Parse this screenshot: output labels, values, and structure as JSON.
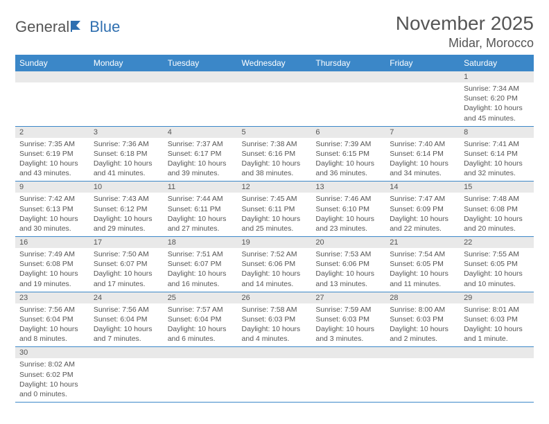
{
  "logo": {
    "general": "General",
    "blue": "Blue"
  },
  "title": "November 2025",
  "location": "Midar, Morocco",
  "colors": {
    "header_bg": "#3b87c8",
    "header_text": "#ffffff",
    "daynum_bg": "#e9e9e9",
    "text": "#555555",
    "rule": "#3b87c8",
    "logo_accent": "#2f6fb0"
  },
  "weekdays": [
    "Sunday",
    "Monday",
    "Tuesday",
    "Wednesday",
    "Thursday",
    "Friday",
    "Saturday"
  ],
  "grid": [
    [
      null,
      null,
      null,
      null,
      null,
      null,
      {
        "n": "1",
        "sunrise": "Sunrise: 7:34 AM",
        "sunset": "Sunset: 6:20 PM",
        "daylight": "Daylight: 10 hours and 45 minutes."
      }
    ],
    [
      {
        "n": "2",
        "sunrise": "Sunrise: 7:35 AM",
        "sunset": "Sunset: 6:19 PM",
        "daylight": "Daylight: 10 hours and 43 minutes."
      },
      {
        "n": "3",
        "sunrise": "Sunrise: 7:36 AM",
        "sunset": "Sunset: 6:18 PM",
        "daylight": "Daylight: 10 hours and 41 minutes."
      },
      {
        "n": "4",
        "sunrise": "Sunrise: 7:37 AM",
        "sunset": "Sunset: 6:17 PM",
        "daylight": "Daylight: 10 hours and 39 minutes."
      },
      {
        "n": "5",
        "sunrise": "Sunrise: 7:38 AM",
        "sunset": "Sunset: 6:16 PM",
        "daylight": "Daylight: 10 hours and 38 minutes."
      },
      {
        "n": "6",
        "sunrise": "Sunrise: 7:39 AM",
        "sunset": "Sunset: 6:15 PM",
        "daylight": "Daylight: 10 hours and 36 minutes."
      },
      {
        "n": "7",
        "sunrise": "Sunrise: 7:40 AM",
        "sunset": "Sunset: 6:14 PM",
        "daylight": "Daylight: 10 hours and 34 minutes."
      },
      {
        "n": "8",
        "sunrise": "Sunrise: 7:41 AM",
        "sunset": "Sunset: 6:14 PM",
        "daylight": "Daylight: 10 hours and 32 minutes."
      }
    ],
    [
      {
        "n": "9",
        "sunrise": "Sunrise: 7:42 AM",
        "sunset": "Sunset: 6:13 PM",
        "daylight": "Daylight: 10 hours and 30 minutes."
      },
      {
        "n": "10",
        "sunrise": "Sunrise: 7:43 AM",
        "sunset": "Sunset: 6:12 PM",
        "daylight": "Daylight: 10 hours and 29 minutes."
      },
      {
        "n": "11",
        "sunrise": "Sunrise: 7:44 AM",
        "sunset": "Sunset: 6:11 PM",
        "daylight": "Daylight: 10 hours and 27 minutes."
      },
      {
        "n": "12",
        "sunrise": "Sunrise: 7:45 AM",
        "sunset": "Sunset: 6:11 PM",
        "daylight": "Daylight: 10 hours and 25 minutes."
      },
      {
        "n": "13",
        "sunrise": "Sunrise: 7:46 AM",
        "sunset": "Sunset: 6:10 PM",
        "daylight": "Daylight: 10 hours and 23 minutes."
      },
      {
        "n": "14",
        "sunrise": "Sunrise: 7:47 AM",
        "sunset": "Sunset: 6:09 PM",
        "daylight": "Daylight: 10 hours and 22 minutes."
      },
      {
        "n": "15",
        "sunrise": "Sunrise: 7:48 AM",
        "sunset": "Sunset: 6:08 PM",
        "daylight": "Daylight: 10 hours and 20 minutes."
      }
    ],
    [
      {
        "n": "16",
        "sunrise": "Sunrise: 7:49 AM",
        "sunset": "Sunset: 6:08 PM",
        "daylight": "Daylight: 10 hours and 19 minutes."
      },
      {
        "n": "17",
        "sunrise": "Sunrise: 7:50 AM",
        "sunset": "Sunset: 6:07 PM",
        "daylight": "Daylight: 10 hours and 17 minutes."
      },
      {
        "n": "18",
        "sunrise": "Sunrise: 7:51 AM",
        "sunset": "Sunset: 6:07 PM",
        "daylight": "Daylight: 10 hours and 16 minutes."
      },
      {
        "n": "19",
        "sunrise": "Sunrise: 7:52 AM",
        "sunset": "Sunset: 6:06 PM",
        "daylight": "Daylight: 10 hours and 14 minutes."
      },
      {
        "n": "20",
        "sunrise": "Sunrise: 7:53 AM",
        "sunset": "Sunset: 6:06 PM",
        "daylight": "Daylight: 10 hours and 13 minutes."
      },
      {
        "n": "21",
        "sunrise": "Sunrise: 7:54 AM",
        "sunset": "Sunset: 6:05 PM",
        "daylight": "Daylight: 10 hours and 11 minutes."
      },
      {
        "n": "22",
        "sunrise": "Sunrise: 7:55 AM",
        "sunset": "Sunset: 6:05 PM",
        "daylight": "Daylight: 10 hours and 10 minutes."
      }
    ],
    [
      {
        "n": "23",
        "sunrise": "Sunrise: 7:56 AM",
        "sunset": "Sunset: 6:04 PM",
        "daylight": "Daylight: 10 hours and 8 minutes."
      },
      {
        "n": "24",
        "sunrise": "Sunrise: 7:56 AM",
        "sunset": "Sunset: 6:04 PM",
        "daylight": "Daylight: 10 hours and 7 minutes."
      },
      {
        "n": "25",
        "sunrise": "Sunrise: 7:57 AM",
        "sunset": "Sunset: 6:04 PM",
        "daylight": "Daylight: 10 hours and 6 minutes."
      },
      {
        "n": "26",
        "sunrise": "Sunrise: 7:58 AM",
        "sunset": "Sunset: 6:03 PM",
        "daylight": "Daylight: 10 hours and 4 minutes."
      },
      {
        "n": "27",
        "sunrise": "Sunrise: 7:59 AM",
        "sunset": "Sunset: 6:03 PM",
        "daylight": "Daylight: 10 hours and 3 minutes."
      },
      {
        "n": "28",
        "sunrise": "Sunrise: 8:00 AM",
        "sunset": "Sunset: 6:03 PM",
        "daylight": "Daylight: 10 hours and 2 minutes."
      },
      {
        "n": "29",
        "sunrise": "Sunrise: 8:01 AM",
        "sunset": "Sunset: 6:03 PM",
        "daylight": "Daylight: 10 hours and 1 minute."
      }
    ],
    [
      {
        "n": "30",
        "sunrise": "Sunrise: 8:02 AM",
        "sunset": "Sunset: 6:02 PM",
        "daylight": "Daylight: 10 hours and 0 minutes."
      },
      null,
      null,
      null,
      null,
      null,
      null
    ]
  ]
}
